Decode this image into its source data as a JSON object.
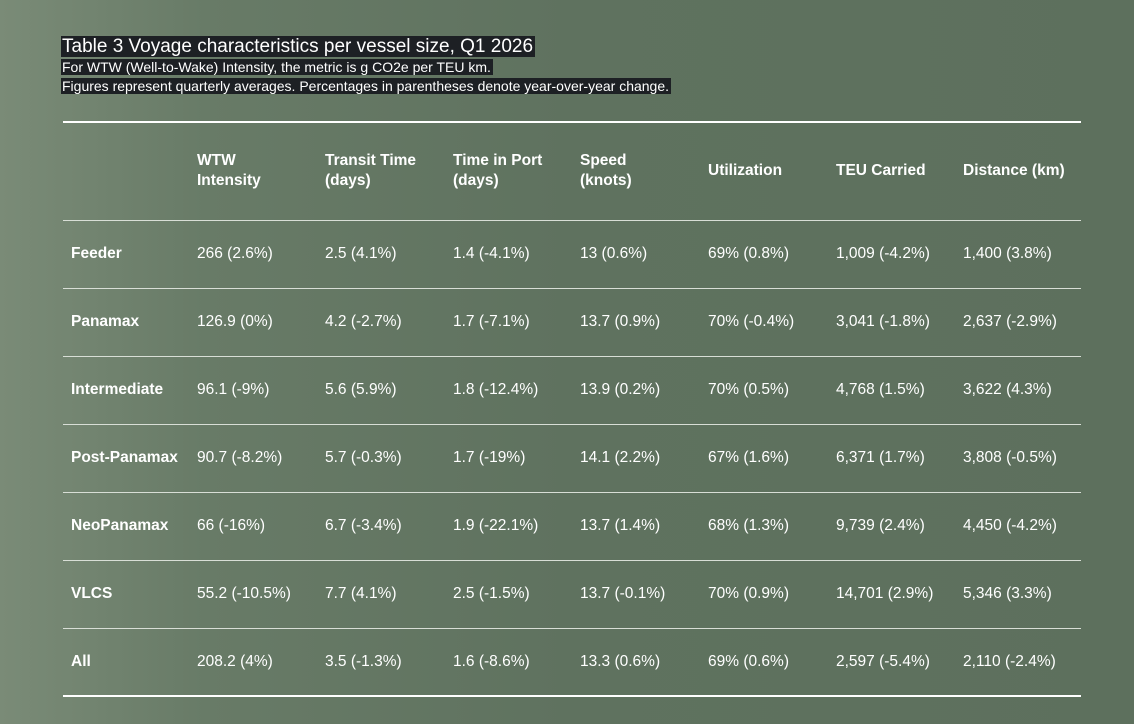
{
  "header": {
    "title": "Table 3 Voyage characteristics per vessel size, Q1 2026",
    "subtitle_lines": [
      "For WTW (Well-to-Wake) Intensity, the metric is g CO2e per TEU km.",
      "Figures represent quarterly averages. Percentages in parentheses denote year-over-year change."
    ]
  },
  "table": {
    "columns": [
      [
        "WTW",
        "Intensity"
      ],
      [
        "Transit Time",
        "(days)"
      ],
      [
        "Time in Port",
        "(days)"
      ],
      [
        "Speed",
        "(knots)"
      ],
      [
        "Utilization"
      ],
      [
        "TEU Carried"
      ],
      [
        "Distance (km)"
      ]
    ],
    "rows": [
      {
        "label": "Feeder",
        "cells": [
          "266 (2.6%)",
          "2.5 (4.1%)",
          "1.4 (-4.1%)",
          "13 (0.6%)",
          "69% (0.8%)",
          "1,009 (-4.2%)",
          "1,400 (3.8%)"
        ]
      },
      {
        "label": "Panamax",
        "cells": [
          "126.9 (0%)",
          "4.2 (-2.7%)",
          "1.7 (-7.1%)",
          "13.7 (0.9%)",
          "70% (-0.4%)",
          "3,041 (-1.8%)",
          "2,637 (-2.9%)"
        ]
      },
      {
        "label": "Intermediate",
        "cells": [
          "96.1 (-9%)",
          "5.6 (5.9%)",
          "1.8 (-12.4%)",
          "13.9 (0.2%)",
          "70% (0.5%)",
          "4,768 (1.5%)",
          "3,622 (4.3%)"
        ]
      },
      {
        "label": "Post-Panamax",
        "cells": [
          "90.7 (-8.2%)",
          "5.7 (-0.3%)",
          "1.7 (-19%)",
          "14.1 (2.2%)",
          "67% (1.6%)",
          "6,371 (1.7%)",
          "3,808 (-0.5%)"
        ]
      },
      {
        "label": "NeoPanamax",
        "cells": [
          "66 (-16%)",
          "6.7 (-3.4%)",
          "1.9 (-22.1%)",
          "13.7 (1.4%)",
          "68% (1.3%)",
          "9,739 (2.4%)",
          "4,450 (-4.2%)"
        ]
      },
      {
        "label": "VLCS",
        "cells": [
          "55.2 (-10.5%)",
          "7.7 (4.1%)",
          "2.5 (-1.5%)",
          "13.7 (-0.1%)",
          "70% (0.9%)",
          "14,701 (2.9%)",
          "5,346 (3.3%)"
        ]
      },
      {
        "label": "All",
        "cells": [
          "208.2 (4%)",
          "3.5 (-1.3%)",
          "1.6 (-8.6%)",
          "13.3 (0.6%)",
          "69% (0.6%)",
          "2,597 (-5.4%)",
          "2,110 (-2.4%)"
        ]
      }
    ]
  },
  "colors": {
    "background": "#5f725f",
    "title_highlight": "#1d2024",
    "text": "#ffffff"
  }
}
